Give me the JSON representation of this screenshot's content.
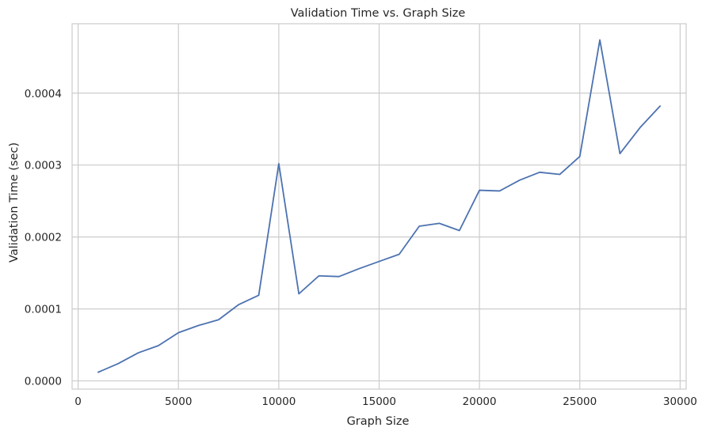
{
  "chart_data": {
    "type": "line",
    "title": "Validation Time vs. Graph Size",
    "xlabel": "Graph Size",
    "ylabel": "Validation Time (sec)",
    "xlim": [
      -300,
      30300
    ],
    "ylim": [
      -1.15e-05,
      0.0004965
    ],
    "xticks": [
      0,
      5000,
      10000,
      15000,
      20000,
      25000,
      30000
    ],
    "yticks": [
      0.0,
      0.0001,
      0.0002,
      0.0003,
      0.0004
    ],
    "xtick_labels": [
      "0",
      "5000",
      "10000",
      "15000",
      "20000",
      "25000",
      "30000"
    ],
    "ytick_labels": [
      "0.0000",
      "0.0001",
      "0.0002",
      "0.0003",
      "0.0004"
    ],
    "grid": true,
    "legend": "none",
    "series": [
      {
        "color": "#4c72b0",
        "x": [
          1000,
          2000,
          3000,
          4000,
          5000,
          6000,
          7000,
          8000,
          9000,
          10000,
          11000,
          12000,
          13000,
          14000,
          15000,
          16000,
          17000,
          18000,
          19000,
          20000,
          21000,
          22000,
          23000,
          24000,
          25000,
          26000,
          27000,
          28000,
          29000
        ],
        "y": [
          1.2e-05,
          2.4e-05,
          3.9e-05,
          4.9e-05,
          6.7e-05,
          7.7e-05,
          8.5e-05,
          0.000106,
          0.000119,
          0.000302,
          0.000121,
          0.000146,
          0.000145,
          0.000156,
          0.000166,
          0.000176,
          0.000215,
          0.000219,
          0.000209,
          0.000265,
          0.000264,
          0.000279,
          0.00029,
          0.000287,
          0.000312,
          0.000474,
          0.000316,
          0.000352,
          0.000382
        ]
      }
    ]
  }
}
